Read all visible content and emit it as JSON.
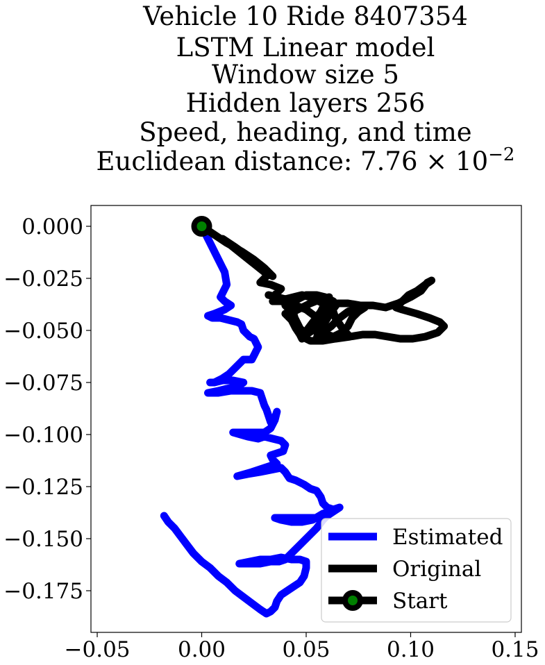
{
  "chart_data": {
    "type": "line",
    "title_lines": [
      "Vehicle 10 Ride 8407354",
      "LSTM Linear model",
      "Window size 5",
      "Hidden layers 256",
      "Speed, heading, and time",
      "Euclidean distance: 7.76 × 10"
    ],
    "title_exponent": "−2",
    "xlabel": "",
    "ylabel": "",
    "xlim": [
      -0.053,
      0.153
    ],
    "ylim": [
      -0.195,
      0.01
    ],
    "xticks": [
      -0.05,
      0.0,
      0.05,
      0.1,
      0.15
    ],
    "xtick_labels": [
      "−0.05",
      "0.00",
      "0.05",
      "0.10",
      "0.15"
    ],
    "yticks": [
      0.0,
      -0.025,
      -0.05,
      -0.075,
      -0.1,
      -0.125,
      -0.15,
      -0.175
    ],
    "ytick_labels": [
      "0.000",
      "−0.025",
      "−0.050",
      "−0.075",
      "−0.100",
      "−0.125",
      "−0.150",
      "−0.175"
    ],
    "grid": false,
    "legend_position": "lower-right",
    "series": [
      {
        "name": "Estimated",
        "color": "#0000ff",
        "points": [
          [
            0.0,
            0.0
          ],
          [
            0.004,
            -0.008
          ],
          [
            0.008,
            -0.016
          ],
          [
            0.011,
            -0.022
          ],
          [
            0.012,
            -0.028
          ],
          [
            0.01,
            -0.032
          ],
          [
            0.009,
            -0.034
          ],
          [
            0.011,
            -0.036
          ],
          [
            0.014,
            -0.038
          ],
          [
            0.011,
            -0.04
          ],
          [
            0.006,
            -0.042
          ],
          [
            0.003,
            -0.043
          ],
          [
            0.005,
            -0.044
          ],
          [
            0.009,
            -0.044
          ],
          [
            0.013,
            -0.045
          ],
          [
            0.017,
            -0.046
          ],
          [
            0.019,
            -0.047
          ],
          [
            0.02,
            -0.05
          ],
          [
            0.022,
            -0.052
          ],
          [
            0.023,
            -0.053
          ],
          [
            0.025,
            -0.054
          ],
          [
            0.027,
            -0.058
          ],
          [
            0.025,
            -0.062
          ],
          [
            0.024,
            -0.064
          ],
          [
            0.02,
            -0.064
          ],
          [
            0.018,
            -0.066
          ],
          [
            0.016,
            -0.068
          ],
          [
            0.013,
            -0.071
          ],
          [
            0.01,
            -0.073
          ],
          [
            0.008,
            -0.074
          ],
          [
            0.006,
            -0.075
          ],
          [
            0.004,
            -0.075
          ],
          [
            0.006,
            -0.075
          ],
          [
            0.01,
            -0.074
          ],
          [
            0.015,
            -0.074
          ],
          [
            0.02,
            -0.075
          ],
          [
            0.017,
            -0.077
          ],
          [
            0.012,
            -0.078
          ],
          [
            0.008,
            -0.079
          ],
          [
            0.003,
            -0.08
          ],
          [
            0.008,
            -0.08
          ],
          [
            0.014,
            -0.079
          ],
          [
            0.019,
            -0.079
          ],
          [
            0.024,
            -0.079
          ],
          [
            0.028,
            -0.08
          ],
          [
            0.029,
            -0.083
          ],
          [
            0.03,
            -0.086
          ],
          [
            0.031,
            -0.088
          ],
          [
            0.032,
            -0.091
          ],
          [
            0.033,
            -0.094
          ],
          [
            0.035,
            -0.092
          ],
          [
            0.036,
            -0.089
          ],
          [
            0.035,
            -0.093
          ],
          [
            0.033,
            -0.097
          ],
          [
            0.03,
            -0.099
          ],
          [
            0.025,
            -0.099
          ],
          [
            0.02,
            -0.099
          ],
          [
            0.015,
            -0.099
          ],
          [
            0.022,
            -0.101
          ],
          [
            0.027,
            -0.102
          ],
          [
            0.03,
            -0.101
          ],
          [
            0.034,
            -0.102
          ],
          [
            0.038,
            -0.103
          ],
          [
            0.04,
            -0.105
          ],
          [
            0.039,
            -0.108
          ],
          [
            0.036,
            -0.109
          ],
          [
            0.033,
            -0.11
          ],
          [
            0.034,
            -0.112
          ],
          [
            0.036,
            -0.114
          ],
          [
            0.03,
            -0.116
          ],
          [
            0.024,
            -0.118
          ],
          [
            0.017,
            -0.12
          ],
          [
            0.022,
            -0.119
          ],
          [
            0.028,
            -0.118
          ],
          [
            0.033,
            -0.117
          ],
          [
            0.038,
            -0.116
          ],
          [
            0.04,
            -0.118
          ],
          [
            0.042,
            -0.121
          ],
          [
            0.045,
            -0.122
          ],
          [
            0.049,
            -0.124
          ],
          [
            0.052,
            -0.126
          ],
          [
            0.055,
            -0.127
          ],
          [
            0.057,
            -0.13
          ],
          [
            0.058,
            -0.133
          ],
          [
            0.06,
            -0.135
          ],
          [
            0.063,
            -0.136
          ],
          [
            0.066,
            -0.135
          ],
          [
            0.063,
            -0.137
          ],
          [
            0.06,
            -0.139
          ],
          [
            0.055,
            -0.14
          ],
          [
            0.05,
            -0.14
          ],
          [
            0.045,
            -0.14
          ],
          [
            0.04,
            -0.14
          ],
          [
            0.035,
            -0.14
          ],
          [
            0.038,
            -0.141
          ],
          [
            0.043,
            -0.142
          ],
          [
            0.048,
            -0.142
          ],
          [
            0.053,
            -0.141
          ],
          [
            0.058,
            -0.138
          ],
          [
            0.062,
            -0.137
          ],
          [
            0.058,
            -0.141
          ],
          [
            0.055,
            -0.145
          ],
          [
            0.052,
            -0.148
          ],
          [
            0.049,
            -0.151
          ],
          [
            0.046,
            -0.154
          ],
          [
            0.043,
            -0.157
          ],
          [
            0.04,
            -0.16
          ],
          [
            0.037,
            -0.161
          ],
          [
            0.033,
            -0.161
          ],
          [
            0.028,
            -0.162
          ],
          [
            0.023,
            -0.162
          ],
          [
            0.018,
            -0.162
          ],
          [
            0.023,
            -0.161
          ],
          [
            0.028,
            -0.16
          ],
          [
            0.033,
            -0.16
          ],
          [
            0.038,
            -0.159
          ],
          [
            0.043,
            -0.16
          ],
          [
            0.047,
            -0.16
          ],
          [
            0.05,
            -0.161
          ],
          [
            0.05,
            -0.164
          ],
          [
            0.049,
            -0.168
          ],
          [
            0.047,
            -0.171
          ],
          [
            0.044,
            -0.173
          ],
          [
            0.041,
            -0.175
          ],
          [
            0.038,
            -0.177
          ],
          [
            0.036,
            -0.18
          ],
          [
            0.035,
            -0.183
          ],
          [
            0.033,
            -0.185
          ],
          [
            0.031,
            -0.186
          ],
          [
            0.028,
            -0.184
          ],
          [
            0.024,
            -0.181
          ],
          [
            0.02,
            -0.178
          ],
          [
            0.016,
            -0.175
          ],
          [
            0.012,
            -0.171
          ],
          [
            0.008,
            -0.168
          ],
          [
            0.004,
            -0.164
          ],
          [
            0.0,
            -0.161
          ],
          [
            -0.004,
            -0.157
          ],
          [
            -0.007,
            -0.153
          ],
          [
            -0.01,
            -0.149
          ],
          [
            -0.013,
            -0.145
          ],
          [
            -0.016,
            -0.142
          ],
          [
            -0.018,
            -0.139
          ]
        ]
      },
      {
        "name": "Original",
        "color": "#000000",
        "points": [
          [
            0.0,
            0.0
          ],
          [
            0.006,
            -0.004
          ],
          [
            0.012,
            -0.008
          ],
          [
            0.019,
            -0.012
          ],
          [
            0.025,
            -0.016
          ],
          [
            0.03,
            -0.02
          ],
          [
            0.034,
            -0.024
          ],
          [
            0.03,
            -0.022
          ],
          [
            0.025,
            -0.018
          ],
          [
            0.02,
            -0.014
          ],
          [
            0.015,
            -0.01
          ],
          [
            0.01,
            -0.006
          ],
          [
            0.016,
            -0.01
          ],
          [
            0.023,
            -0.015
          ],
          [
            0.03,
            -0.02
          ],
          [
            0.031,
            -0.024
          ],
          [
            0.028,
            -0.027
          ],
          [
            0.033,
            -0.028
          ],
          [
            0.038,
            -0.03
          ],
          [
            0.035,
            -0.033
          ],
          [
            0.034,
            -0.036
          ],
          [
            0.038,
            -0.036
          ],
          [
            0.042,
            -0.037
          ],
          [
            0.046,
            -0.035
          ],
          [
            0.05,
            -0.033
          ],
          [
            0.055,
            -0.033
          ],
          [
            0.059,
            -0.034
          ],
          [
            0.063,
            -0.036
          ],
          [
            0.06,
            -0.039
          ],
          [
            0.058,
            -0.043
          ],
          [
            0.056,
            -0.047
          ],
          [
            0.053,
            -0.05
          ],
          [
            0.05,
            -0.052
          ],
          [
            0.047,
            -0.049
          ],
          [
            0.045,
            -0.045
          ],
          [
            0.043,
            -0.041
          ],
          [
            0.04,
            -0.038
          ],
          [
            0.045,
            -0.038
          ],
          [
            0.05,
            -0.04
          ],
          [
            0.054,
            -0.043
          ],
          [
            0.058,
            -0.047
          ],
          [
            0.06,
            -0.052
          ],
          [
            0.063,
            -0.053
          ],
          [
            0.067,
            -0.051
          ],
          [
            0.07,
            -0.048
          ],
          [
            0.072,
            -0.044
          ],
          [
            0.075,
            -0.041
          ],
          [
            0.078,
            -0.039
          ],
          [
            0.074,
            -0.039
          ],
          [
            0.07,
            -0.041
          ],
          [
            0.066,
            -0.044
          ],
          [
            0.062,
            -0.048
          ],
          [
            0.058,
            -0.051
          ],
          [
            0.055,
            -0.054
          ],
          [
            0.056,
            -0.05
          ],
          [
            0.059,
            -0.046
          ],
          [
            0.062,
            -0.041
          ],
          [
            0.065,
            -0.037
          ],
          [
            0.07,
            -0.037
          ],
          [
            0.076,
            -0.038
          ],
          [
            0.082,
            -0.038
          ],
          [
            0.088,
            -0.039
          ],
          [
            0.094,
            -0.037
          ],
          [
            0.1,
            -0.034
          ],
          [
            0.105,
            -0.031
          ],
          [
            0.108,
            -0.027
          ],
          [
            0.11,
            -0.026
          ],
          [
            0.107,
            -0.028
          ],
          [
            0.103,
            -0.031
          ],
          [
            0.099,
            -0.033
          ],
          [
            0.096,
            -0.036
          ],
          [
            0.093,
            -0.039
          ],
          [
            0.096,
            -0.04
          ],
          [
            0.103,
            -0.042
          ],
          [
            0.109,
            -0.044
          ],
          [
            0.114,
            -0.046
          ],
          [
            0.116,
            -0.048
          ],
          [
            0.113,
            -0.051
          ],
          [
            0.107,
            -0.053
          ],
          [
            0.101,
            -0.054
          ],
          [
            0.095,
            -0.054
          ],
          [
            0.089,
            -0.053
          ],
          [
            0.083,
            -0.052
          ],
          [
            0.077,
            -0.052
          ],
          [
            0.071,
            -0.053
          ],
          [
            0.064,
            -0.054
          ],
          [
            0.058,
            -0.055
          ],
          [
            0.052,
            -0.055
          ],
          [
            0.048,
            -0.053
          ],
          [
            0.051,
            -0.049
          ],
          [
            0.054,
            -0.045
          ],
          [
            0.057,
            -0.041
          ],
          [
            0.059,
            -0.037
          ],
          [
            0.061,
            -0.034
          ],
          [
            0.057,
            -0.035
          ],
          [
            0.052,
            -0.037
          ],
          [
            0.048,
            -0.039
          ],
          [
            0.044,
            -0.041
          ],
          [
            0.04,
            -0.042
          ],
          [
            0.043,
            -0.045
          ],
          [
            0.045,
            -0.049
          ],
          [
            0.047,
            -0.052
          ],
          [
            0.048,
            -0.054
          ],
          [
            0.047,
            -0.05
          ],
          [
            0.045,
            -0.046
          ],
          [
            0.044,
            -0.042
          ],
          [
            0.043,
            -0.038
          ],
          [
            0.04,
            -0.036
          ],
          [
            0.036,
            -0.034
          ],
          [
            0.032,
            -0.033
          ],
          [
            0.036,
            -0.034
          ],
          [
            0.04,
            -0.035
          ],
          [
            0.044,
            -0.034
          ],
          [
            0.048,
            -0.033
          ],
          [
            0.052,
            -0.034
          ],
          [
            0.056,
            -0.036
          ],
          [
            0.06,
            -0.038
          ],
          [
            0.063,
            -0.041
          ],
          [
            0.064,
            -0.044
          ],
          [
            0.066,
            -0.047
          ],
          [
            0.068,
            -0.05
          ],
          [
            0.07,
            -0.052
          ]
        ]
      }
    ],
    "start": {
      "name": "Start",
      "point": [
        0.0,
        0.0
      ],
      "marker_color": "#008000",
      "marker_edge_color": "#000000"
    }
  }
}
